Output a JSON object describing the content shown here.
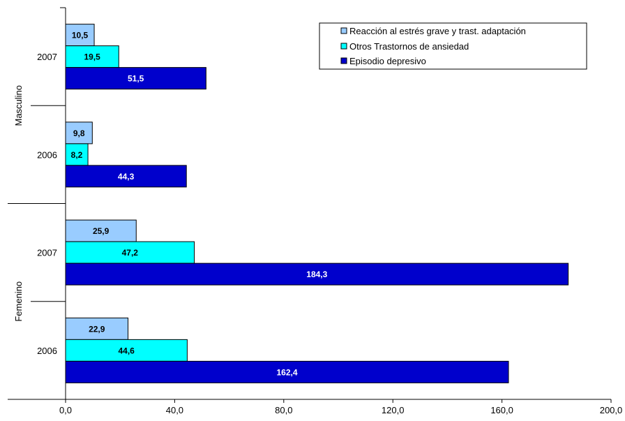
{
  "chart_data": {
    "type": "bar",
    "orientation": "horizontal",
    "xlim": [
      0,
      200
    ],
    "x_ticks": [
      "0,0",
      "40,0",
      "80,0",
      "120,0",
      "160,0",
      "200,0"
    ],
    "x_tick_values": [
      0,
      40,
      80,
      120,
      160,
      200
    ],
    "groups": [
      {
        "label": "Masculino",
        "categories": [
          {
            "label": "2007",
            "values": [
              10.5,
              19.5,
              51.5
            ],
            "labels": [
              "10,5",
              "19,5",
              "51,5"
            ]
          },
          {
            "label": "2006",
            "values": [
              9.8,
              8.2,
              44.3
            ],
            "labels": [
              "9,8",
              "8,2",
              "44,3"
            ]
          }
        ]
      },
      {
        "label": "Femenino",
        "categories": [
          {
            "label": "2007",
            "values": [
              25.9,
              47.2,
              184.3
            ],
            "labels": [
              "25,9",
              "47,2",
              "184,3"
            ]
          },
          {
            "label": "2006",
            "values": [
              22.9,
              44.6,
              162.4
            ],
            "labels": [
              "22,9",
              "44,6",
              "162,4"
            ]
          }
        ]
      }
    ],
    "series": [
      {
        "name": "Reacción al estrés grave y trast. adaptación",
        "color": "#99ccff",
        "label_color": "#000000"
      },
      {
        "name": "Otros Trastornos de ansiedad",
        "color": "#00ffff",
        "label_color": "#000000"
      },
      {
        "name": "Episodio depresivo",
        "color": "#0000cc",
        "label_color": "#ffffff"
      }
    ],
    "legend_position": "top-right",
    "grid": false
  }
}
